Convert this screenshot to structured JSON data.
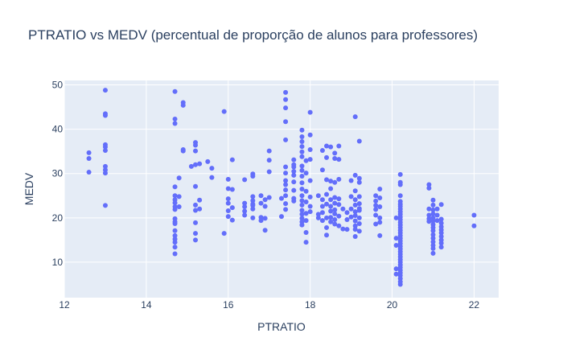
{
  "chart_data": {
    "type": "scatter",
    "title": "PTRATIO vs MEDV (percentual de proporção de alunos para professores)",
    "xlabel": "PTRATIO",
    "ylabel": "MEDV",
    "xlim": [
      12,
      22.6
    ],
    "ylim": [
      2,
      51
    ],
    "xticks": [
      12,
      14,
      16,
      18,
      20,
      22
    ],
    "yticks": [
      10,
      20,
      30,
      40,
      50
    ],
    "grid": true,
    "legend": "none",
    "colors": {
      "marker": "#636efa",
      "plot_bg": "#e5ecf6",
      "grid": "#ffffff",
      "text": "#2a3f5f"
    },
    "series": [
      {
        "points": [
          [
            12.6,
            34.7
          ],
          [
            12.6,
            33.4
          ],
          [
            12.6,
            30.3
          ],
          [
            13.0,
            48.8
          ],
          [
            13.0,
            43.5
          ],
          [
            13.0,
            43.1
          ],
          [
            13.0,
            36.5
          ],
          [
            13.0,
            36.0
          ],
          [
            13.0,
            35.2
          ],
          [
            13.0,
            31.6
          ],
          [
            13.0,
            30.8
          ],
          [
            13.0,
            30.1
          ],
          [
            13.0,
            22.8
          ],
          [
            14.7,
            48.5
          ],
          [
            14.7,
            42.3
          ],
          [
            14.7,
            41.3
          ],
          [
            14.7,
            27.0
          ],
          [
            14.7,
            25.0
          ],
          [
            14.7,
            24.1
          ],
          [
            14.7,
            23.4
          ],
          [
            14.7,
            22.5
          ],
          [
            14.7,
            21.9
          ],
          [
            14.7,
            19.8
          ],
          [
            14.7,
            19.1
          ],
          [
            14.7,
            18.7
          ],
          [
            14.7,
            17.1
          ],
          [
            14.7,
            16.0
          ],
          [
            14.7,
            15.2
          ],
          [
            14.7,
            14.5
          ],
          [
            14.7,
            13.4
          ],
          [
            14.7,
            11.9
          ],
          [
            14.8,
            29.0
          ],
          [
            14.8,
            24.8
          ],
          [
            14.8,
            22.5
          ],
          [
            14.9,
            46.0
          ],
          [
            14.9,
            45.4
          ],
          [
            14.9,
            35.4
          ],
          [
            14.9,
            35.1
          ],
          [
            15.1,
            31.6
          ],
          [
            15.2,
            37.0
          ],
          [
            15.2,
            36.4
          ],
          [
            15.2,
            35.1
          ],
          [
            15.2,
            32.0
          ],
          [
            15.2,
            27.1
          ],
          [
            15.2,
            22.9
          ],
          [
            15.2,
            21.7
          ],
          [
            15.2,
            18.9
          ],
          [
            15.2,
            16.5
          ],
          [
            15.2,
            15.0
          ],
          [
            15.3,
            32.2
          ],
          [
            15.3,
            24.0
          ],
          [
            15.3,
            22.0
          ],
          [
            15.5,
            32.7
          ],
          [
            15.6,
            31.2
          ],
          [
            15.6,
            29.1
          ],
          [
            15.9,
            44.0
          ],
          [
            15.9,
            16.5
          ],
          [
            16.0,
            28.7
          ],
          [
            16.0,
            26.6
          ],
          [
            16.0,
            24.3
          ],
          [
            16.0,
            23.3
          ],
          [
            16.0,
            21.6
          ],
          [
            16.0,
            20.3
          ],
          [
            16.1,
            33.1
          ],
          [
            16.1,
            26.4
          ],
          [
            16.1,
            22.3
          ],
          [
            16.1,
            19.5
          ],
          [
            16.4,
            28.6
          ],
          [
            16.4,
            23.3
          ],
          [
            16.4,
            22.5
          ],
          [
            16.4,
            21.5
          ],
          [
            16.4,
            20.6
          ],
          [
            16.6,
            29.9
          ],
          [
            16.6,
            29.4
          ],
          [
            16.6,
            24.8
          ],
          [
            16.6,
            23.9
          ],
          [
            16.6,
            23.1
          ],
          [
            16.6,
            22.8
          ],
          [
            16.6,
            22.0
          ],
          [
            16.6,
            20.0
          ],
          [
            16.8,
            25.0
          ],
          [
            16.8,
            23.3
          ],
          [
            16.8,
            20.1
          ],
          [
            16.8,
            19.4
          ],
          [
            16.9,
            24.1
          ],
          [
            16.9,
            22.6
          ],
          [
            16.9,
            19.9
          ],
          [
            16.9,
            17.2
          ],
          [
            17.0,
            35.1
          ],
          [
            17.0,
            33.0
          ],
          [
            17.0,
            30.4
          ],
          [
            17.0,
            24.6
          ],
          [
            17.3,
            24.4
          ],
          [
            17.3,
            20.3
          ],
          [
            17.4,
            48.3
          ],
          [
            17.4,
            46.7
          ],
          [
            17.4,
            44.8
          ],
          [
            17.4,
            41.7
          ],
          [
            17.4,
            37.6
          ],
          [
            17.4,
            31.5
          ],
          [
            17.4,
            30.1
          ],
          [
            17.4,
            28.4
          ],
          [
            17.4,
            27.5
          ],
          [
            17.4,
            26.3
          ],
          [
            17.4,
            25.0
          ],
          [
            17.4,
            23.2
          ],
          [
            17.4,
            21.9
          ],
          [
            17.6,
            33.1
          ],
          [
            17.6,
            32.0
          ],
          [
            17.6,
            31.5
          ],
          [
            17.6,
            30.5
          ],
          [
            17.6,
            29.6
          ],
          [
            17.6,
            28.1
          ],
          [
            17.6,
            26.2
          ],
          [
            17.6,
            24.4
          ],
          [
            17.6,
            23.8
          ],
          [
            17.8,
            39.8
          ],
          [
            17.8,
            38.3
          ],
          [
            17.8,
            37.2
          ],
          [
            17.8,
            36.1
          ],
          [
            17.8,
            34.9
          ],
          [
            17.8,
            33.8
          ],
          [
            17.8,
            31.7
          ],
          [
            17.8,
            30.7
          ],
          [
            17.8,
            29.4
          ],
          [
            17.8,
            27.9
          ],
          [
            17.8,
            26.5
          ],
          [
            17.8,
            25.0
          ],
          [
            17.8,
            23.9
          ],
          [
            17.8,
            22.9
          ],
          [
            17.8,
            21.7
          ],
          [
            17.8,
            20.8
          ],
          [
            17.8,
            19.9
          ],
          [
            17.8,
            19.1
          ],
          [
            17.8,
            18.4
          ],
          [
            17.9,
            32.9
          ],
          [
            17.9,
            30.1
          ],
          [
            17.9,
            26.0
          ],
          [
            17.9,
            23.6
          ],
          [
            17.9,
            21.0
          ],
          [
            17.9,
            19.4
          ],
          [
            17.9,
            16.7
          ],
          [
            17.9,
            14.5
          ],
          [
            18.0,
            43.8
          ],
          [
            18.0,
            38.7
          ],
          [
            18.0,
            35.4
          ],
          [
            18.0,
            33.2
          ],
          [
            18.0,
            28.4
          ],
          [
            18.0,
            24.7
          ],
          [
            18.0,
            22.6
          ],
          [
            18.0,
            21.4
          ],
          [
            18.2,
            25.0
          ],
          [
            18.2,
            20.8
          ],
          [
            18.2,
            20.0
          ],
          [
            18.3,
            35.2
          ],
          [
            18.3,
            30.8
          ],
          [
            18.3,
            24.1
          ],
          [
            18.3,
            22.6
          ],
          [
            18.3,
            21.2
          ],
          [
            18.3,
            19.4
          ],
          [
            18.4,
            36.2
          ],
          [
            18.4,
            33.6
          ],
          [
            18.4,
            28.6
          ],
          [
            18.4,
            25.3
          ],
          [
            18.4,
            23.1
          ],
          [
            18.4,
            20.0
          ],
          [
            18.4,
            17.8
          ],
          [
            18.4,
            16.1
          ],
          [
            18.5,
            36.0
          ],
          [
            18.5,
            28.3
          ],
          [
            18.5,
            26.6
          ],
          [
            18.5,
            24.1
          ],
          [
            18.5,
            22.6
          ],
          [
            18.5,
            21.5
          ],
          [
            18.5,
            20.1
          ],
          [
            18.5,
            19.1
          ],
          [
            18.6,
            34.6
          ],
          [
            18.6,
            33.4
          ],
          [
            18.6,
            28.0
          ],
          [
            18.6,
            24.6
          ],
          [
            18.6,
            23.3
          ],
          [
            18.6,
            21.8
          ],
          [
            18.6,
            20.9
          ],
          [
            18.6,
            19.6
          ],
          [
            18.6,
            18.6
          ],
          [
            18.7,
            36.2
          ],
          [
            18.7,
            33.2
          ],
          [
            18.7,
            28.7
          ],
          [
            18.7,
            24.3
          ],
          [
            18.7,
            23.0
          ],
          [
            18.7,
            20.4
          ],
          [
            18.7,
            18.2
          ],
          [
            18.8,
            22.0
          ],
          [
            18.8,
            17.5
          ],
          [
            18.9,
            21.2
          ],
          [
            18.9,
            19.6
          ],
          [
            18.9,
            17.4
          ],
          [
            19.0,
            28.4
          ],
          [
            19.0,
            24.8
          ],
          [
            19.0,
            22.0
          ],
          [
            19.0,
            20.2
          ],
          [
            19.1,
            42.8
          ],
          [
            19.1,
            29.6
          ],
          [
            19.1,
            26.1
          ],
          [
            19.1,
            24.1
          ],
          [
            19.1,
            22.9
          ],
          [
            19.1,
            21.4
          ],
          [
            19.1,
            20.5
          ],
          [
            19.1,
            19.3
          ],
          [
            19.1,
            18.2
          ],
          [
            19.1,
            17.4
          ],
          [
            19.1,
            15.8
          ],
          [
            19.2,
            37.3
          ],
          [
            19.2,
            28.9
          ],
          [
            19.2,
            28.0
          ],
          [
            19.2,
            24.8
          ],
          [
            19.2,
            23.2
          ],
          [
            19.2,
            22.1
          ],
          [
            19.2,
            21.7
          ],
          [
            19.2,
            20.0
          ],
          [
            19.2,
            18.7
          ],
          [
            19.2,
            17.0
          ],
          [
            19.6,
            25.0
          ],
          [
            19.6,
            23.8
          ],
          [
            19.6,
            22.8
          ],
          [
            19.6,
            21.9
          ],
          [
            19.6,
            20.6
          ],
          [
            19.6,
            18.6
          ],
          [
            19.7,
            24.5
          ],
          [
            19.7,
            22.5
          ],
          [
            19.7,
            20.0
          ],
          [
            19.7,
            26.5
          ],
          [
            19.7,
            19.0
          ],
          [
            19.7,
            16.0
          ],
          [
            20.1,
            20.0
          ],
          [
            20.1,
            15.4
          ],
          [
            20.1,
            13.8
          ],
          [
            20.1,
            8.5
          ],
          [
            20.1,
            7.3
          ],
          [
            20.2,
            29.8
          ],
          [
            20.2,
            28.0
          ],
          [
            20.2,
            27.5
          ],
          [
            20.2,
            25.0
          ],
          [
            20.2,
            23.7
          ],
          [
            20.2,
            23.1
          ],
          [
            20.2,
            22.6
          ],
          [
            20.2,
            22.0
          ],
          [
            20.2,
            21.4
          ],
          [
            20.2,
            20.8
          ],
          [
            20.2,
            20.2
          ],
          [
            20.2,
            19.6
          ],
          [
            20.2,
            19.0
          ],
          [
            20.2,
            18.4
          ],
          [
            20.2,
            17.8
          ],
          [
            20.2,
            17.2
          ],
          [
            20.2,
            16.6
          ],
          [
            20.2,
            16.0
          ],
          [
            20.2,
            15.4
          ],
          [
            20.2,
            14.8
          ],
          [
            20.2,
            14.2
          ],
          [
            20.2,
            13.6
          ],
          [
            20.2,
            13.0
          ],
          [
            20.2,
            12.4
          ],
          [
            20.2,
            11.8
          ],
          [
            20.2,
            11.2
          ],
          [
            20.2,
            10.6
          ],
          [
            20.2,
            10.0
          ],
          [
            20.2,
            9.4
          ],
          [
            20.2,
            8.8
          ],
          [
            20.2,
            8.2
          ],
          [
            20.2,
            7.6
          ],
          [
            20.2,
            7.0
          ],
          [
            20.2,
            6.3
          ],
          [
            20.2,
            5.6
          ],
          [
            20.2,
            5.0
          ],
          [
            20.9,
            27.5
          ],
          [
            20.9,
            26.7
          ],
          [
            20.9,
            22.0
          ],
          [
            20.9,
            20.6
          ],
          [
            20.9,
            19.8
          ],
          [
            20.9,
            19.2
          ],
          [
            21.0,
            24.0
          ],
          [
            21.0,
            22.9
          ],
          [
            21.0,
            21.8
          ],
          [
            21.0,
            20.9
          ],
          [
            21.0,
            20.0
          ],
          [
            21.0,
            19.3
          ],
          [
            21.0,
            18.5
          ],
          [
            21.0,
            17.8
          ],
          [
            21.0,
            17.1
          ],
          [
            21.0,
            16.2
          ],
          [
            21.0,
            15.4
          ],
          [
            21.0,
            14.6
          ],
          [
            21.0,
            13.8
          ],
          [
            21.0,
            13.1
          ],
          [
            21.0,
            12.0
          ],
          [
            21.1,
            22.0
          ],
          [
            21.1,
            20.6
          ],
          [
            21.1,
            19.4
          ],
          [
            21.2,
            23.0
          ],
          [
            21.2,
            19.7
          ],
          [
            21.2,
            18.8
          ],
          [
            21.2,
            18.0
          ],
          [
            21.2,
            17.3
          ],
          [
            21.2,
            16.6
          ],
          [
            21.2,
            15.8
          ],
          [
            21.2,
            15.0
          ],
          [
            21.2,
            14.3
          ],
          [
            21.2,
            13.4
          ],
          [
            22.0,
            20.6
          ],
          [
            22.0,
            18.2
          ]
        ]
      }
    ]
  }
}
